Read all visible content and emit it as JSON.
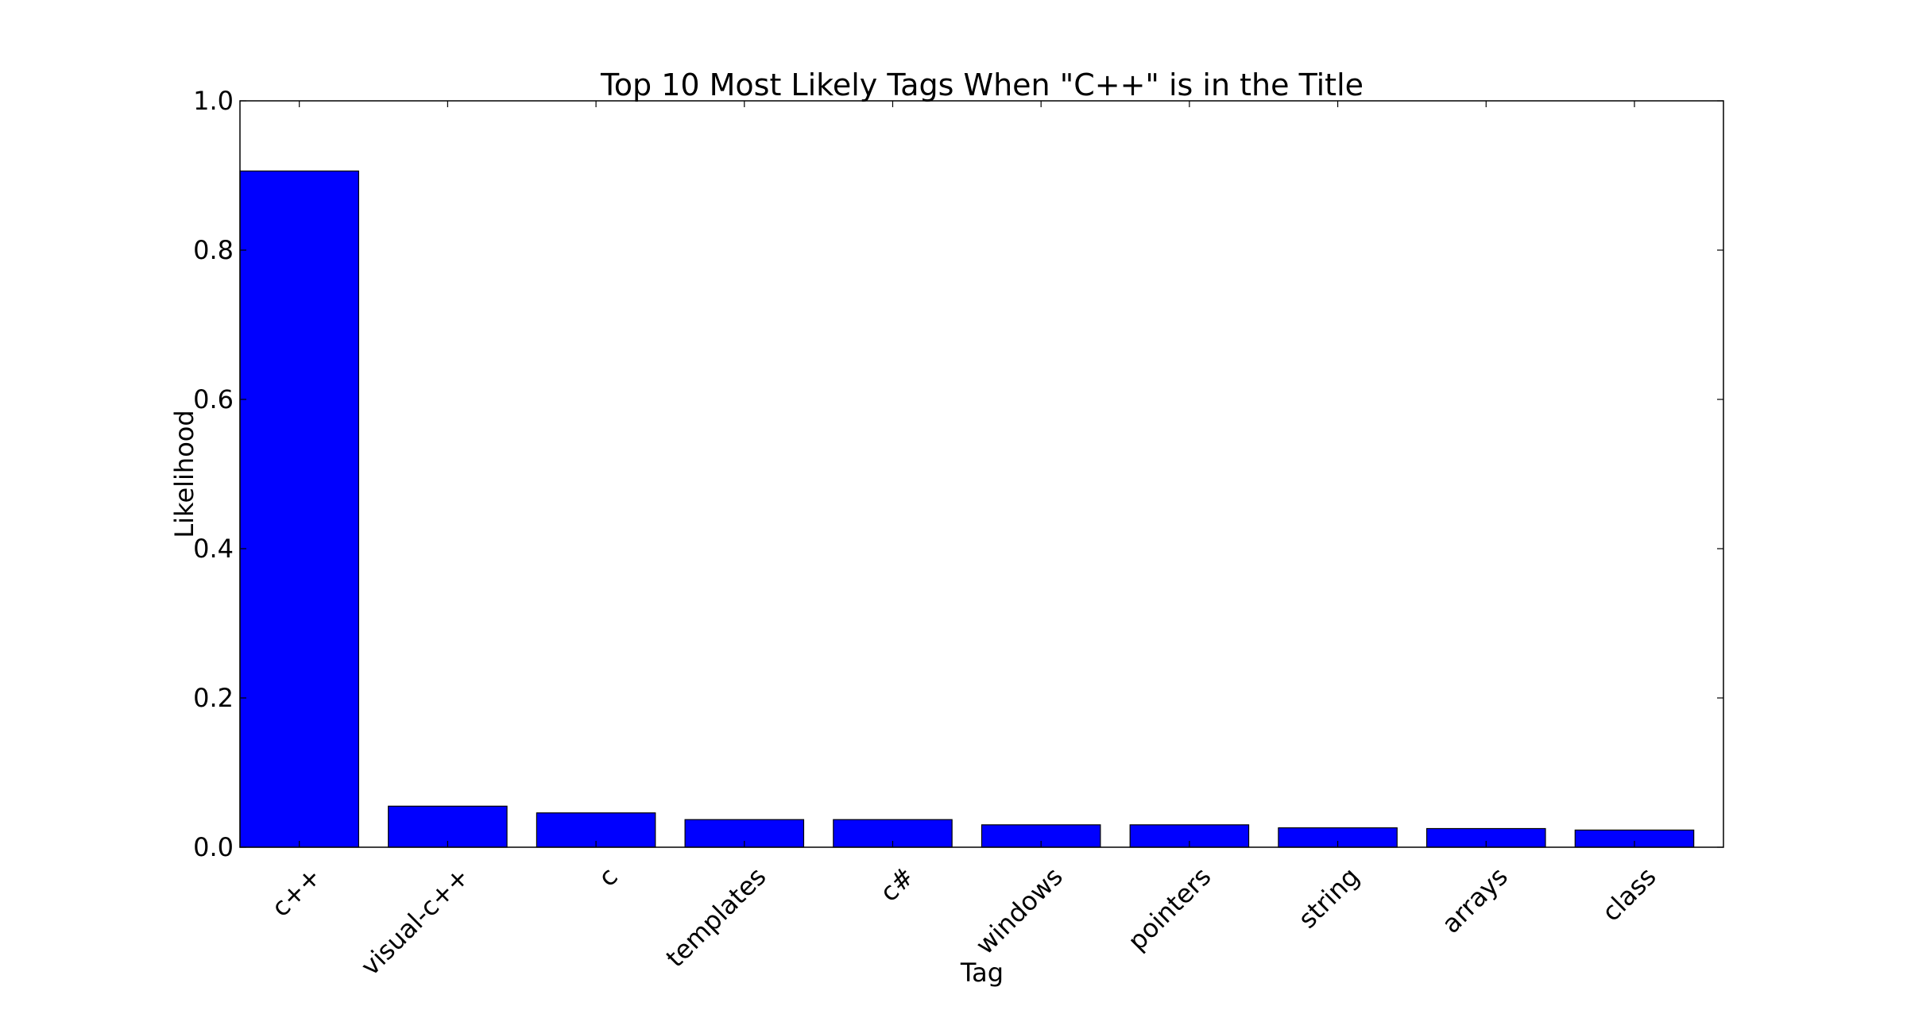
{
  "chart_data": {
    "type": "bar",
    "title": "Top 10 Most Likely Tags When \"C++\" is in the Title",
    "xlabel": "Tag",
    "ylabel": "Likelihood",
    "ylim": [
      0,
      1.0
    ],
    "yticks": [
      "0.0",
      "0.2",
      "0.4",
      "0.6",
      "0.8",
      "1.0"
    ],
    "categories": [
      "c++",
      "visual-c++",
      "c",
      "templates",
      "c#",
      "windows",
      "pointers",
      "string",
      "arrays",
      "class"
    ],
    "values": [
      0.906,
      0.055,
      0.046,
      0.037,
      0.037,
      0.03,
      0.03,
      0.026,
      0.025,
      0.023
    ],
    "bar_color": "#0000ff",
    "grid": false,
    "legend": "none"
  }
}
